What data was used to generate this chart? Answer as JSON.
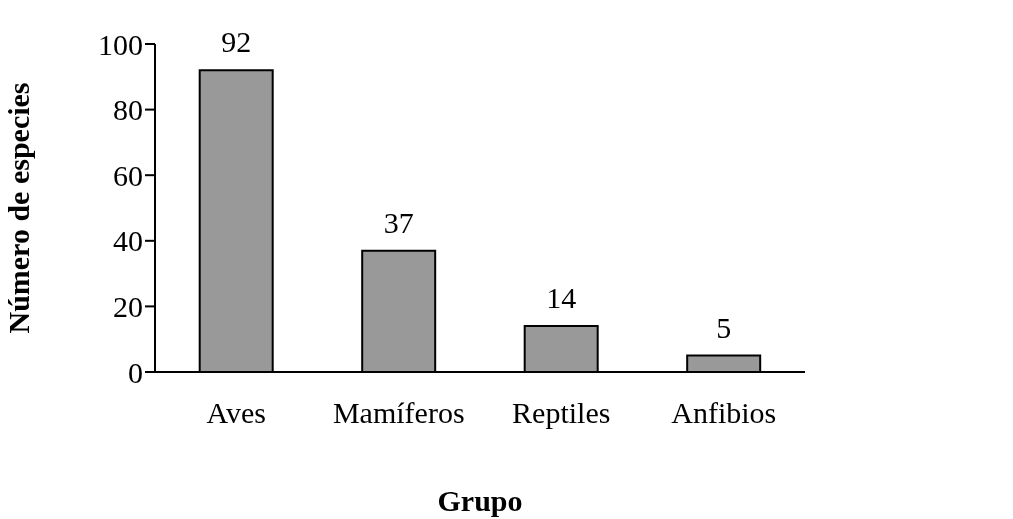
{
  "chart_data": {
    "type": "bar",
    "xlabel": "Grupo",
    "ylabel": "Número de especies",
    "categories": [
      "Aves",
      "Mamíferos",
      "Reptiles",
      "Anfibios"
    ],
    "values": [
      92,
      37,
      14,
      5
    ],
    "color": "#999999",
    "ylim": [
      0,
      100
    ],
    "yticks": [
      0,
      20,
      40,
      60,
      80,
      100
    ],
    "grid": false,
    "data_labels": true
  }
}
